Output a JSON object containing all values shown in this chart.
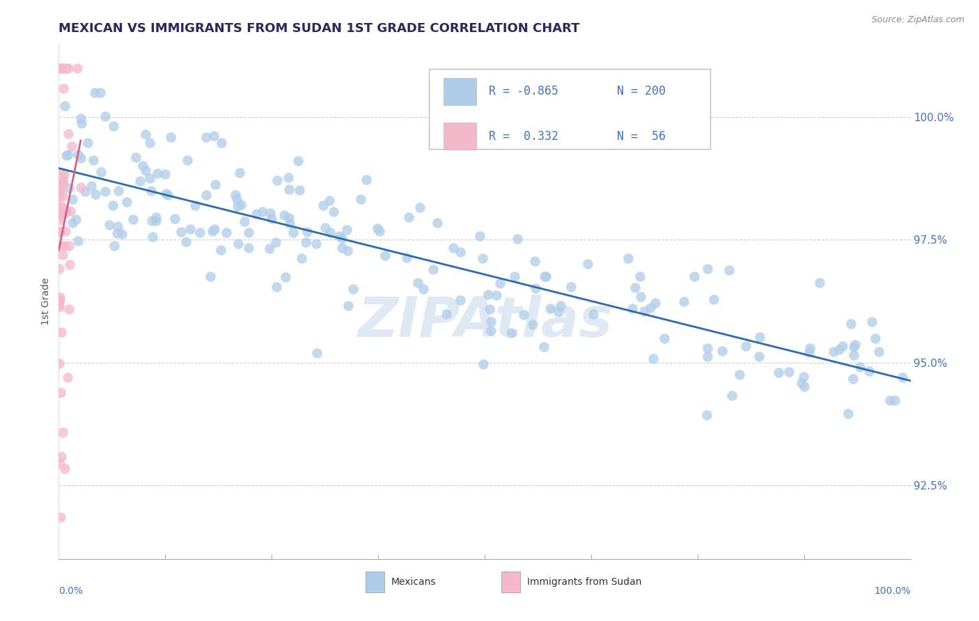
{
  "title": "MEXICAN VS IMMIGRANTS FROM SUDAN 1ST GRADE CORRELATION CHART",
  "source_text": "Source: ZipAtlas.com",
  "ylabel": "1st Grade",
  "y_ticks": [
    92.5,
    95.0,
    97.5,
    100.0
  ],
  "y_tick_labels": [
    "92.5%",
    "95.0%",
    "97.5%",
    "100.0%"
  ],
  "xlim": [
    0.0,
    100.0
  ],
  "ylim": [
    91.0,
    101.5
  ],
  "legend_items": [
    {
      "color": "#aecce8",
      "R": "-0.865",
      "N": "200"
    },
    {
      "color": "#f4b8cb",
      "R": " 0.332",
      "N": " 56"
    }
  ],
  "bottom_labels": [
    "Mexicans",
    "Immigrants from Sudan"
  ],
  "blue_color": "#aecce8",
  "pink_color": "#f4b8cb",
  "blue_line_color": "#2a6ab0",
  "pink_line_color": "#d96080",
  "watermark": "ZIPAtlas",
  "watermark_color": "#c5d8ea",
  "title_color": "#2a2a5a",
  "axis_label_color": "#555555",
  "tick_color": "#4472c4",
  "grid_color": "#cccccc",
  "blue_R": -0.865,
  "blue_N": 200,
  "pink_R": 0.332,
  "pink_N": 56,
  "seed": 42
}
